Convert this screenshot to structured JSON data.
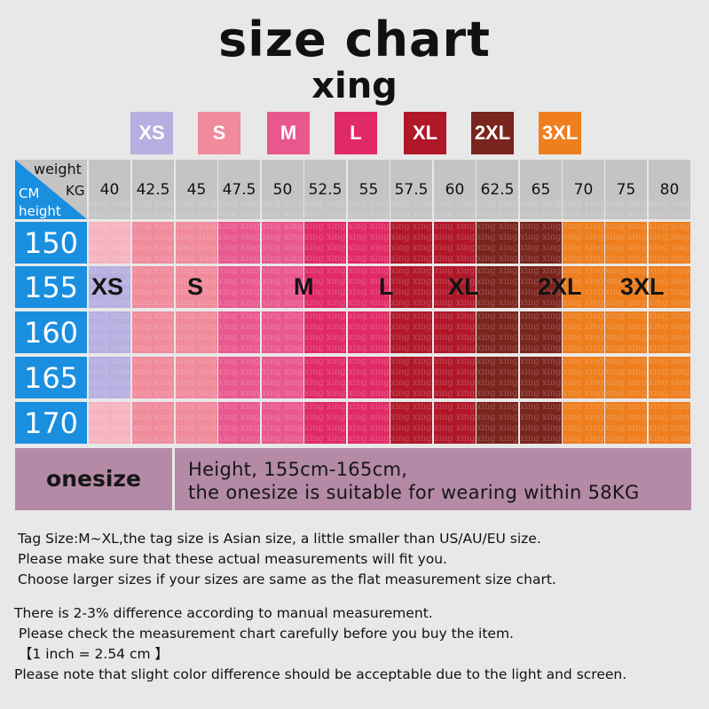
{
  "title": "size chart",
  "brand": "xing",
  "sizes": [
    {
      "label": "XS",
      "color": "#b9aee0"
    },
    {
      "label": "S",
      "color": "#f08a9c"
    },
    {
      "label": "M",
      "color": "#e8588e"
    },
    {
      "label": "L",
      "color": "#e02a66"
    },
    {
      "label": "XL",
      "color": "#b0182a"
    },
    {
      "label": "2XL",
      "color": "#7a241e"
    },
    {
      "label": "3XL",
      "color": "#ee7e1e"
    }
  ],
  "table": {
    "corner": {
      "weight": "weight",
      "kg": "KG",
      "cm": "CM",
      "height": "height",
      "color": "#1a8fe0"
    },
    "weights": [
      "40",
      "42.5",
      "45",
      "47.5",
      "50",
      "52.5",
      "55",
      "57.5",
      "60",
      "62.5",
      "65",
      "70",
      "75",
      "80"
    ],
    "heights": [
      "150",
      "155",
      "160",
      "165",
      "170"
    ],
    "header_bg": "#c4c4c4",
    "watermark": "xing",
    "onesize": {
      "label": "onesize",
      "line1": "Height, 155cm-165cm,",
      "line2": "the onesize is suitable for wearing within 58KG"
    }
  },
  "notes": [
    "Tag Size:M~XL,the tag size is Asian size, a little smaller than US/AU/EU size.",
    "Please make sure that these actual measurements will fit you.",
    "Choose larger sizes if your sizes are same as the flat measurement size chart."
  ],
  "notes2": [
    "There is 2-3% difference according to manual measurement.",
    " Please check the measurement chart carefully before you buy the item.",
    " 【1 inch = 2.54 cm 】",
    "Please note that slight color difference should be acceptable due to the light and screen."
  ]
}
